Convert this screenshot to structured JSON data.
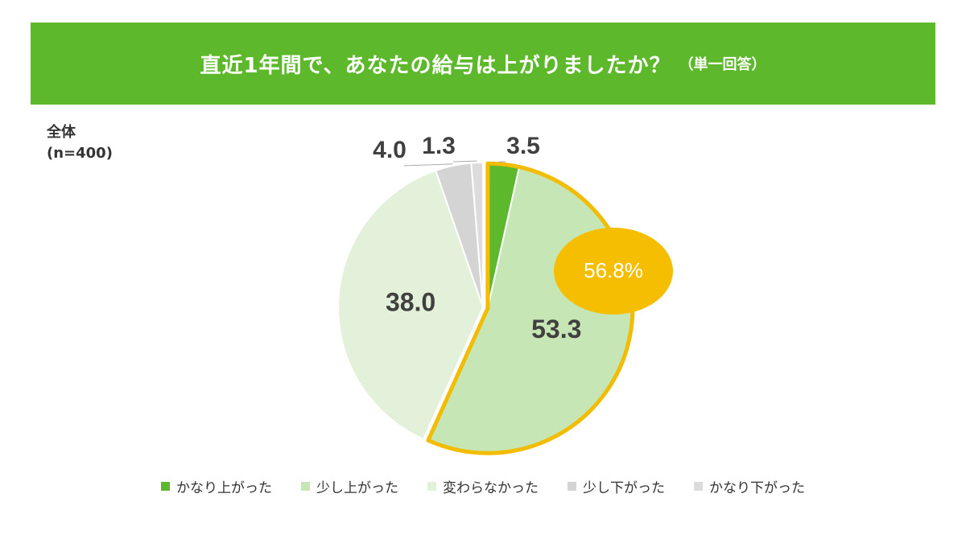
{
  "header": {
    "title": "直近1年間で、あなたの給与は上がりましたか？",
    "subtitle": "（単一回答）",
    "background": "#5DB82C"
  },
  "sample": {
    "line1": "全体",
    "line2": "(n=400)"
  },
  "chart_data": {
    "type": "pie",
    "start_angle_deg": 0,
    "direction": "clockwise",
    "slices": [
      {
        "label": "かなり上がった",
        "value": 3.5,
        "display": "3.5",
        "color": "#5DB82C"
      },
      {
        "label": "少し上がった",
        "value": 53.3,
        "display": "53.3",
        "color": "#C7E6B5"
      },
      {
        "label": "変わらなかった",
        "value": 38.0,
        "display": "38.0",
        "color": "#E3F0DA"
      },
      {
        "label": "少し下がった",
        "value": 4.0,
        "display": "4.0",
        "color": "#D4D4D4"
      },
      {
        "label": "かなり下がった",
        "value": 1.3,
        "display": "1.3",
        "color": "#DCDCDC"
      }
    ],
    "highlight": {
      "slices": [
        "かなり上がった",
        "少し上がった"
      ],
      "outline_color": "#F2BC00",
      "callout_text": "56.8%",
      "callout_color": "#F5BE00"
    },
    "legend_position": "bottom"
  }
}
